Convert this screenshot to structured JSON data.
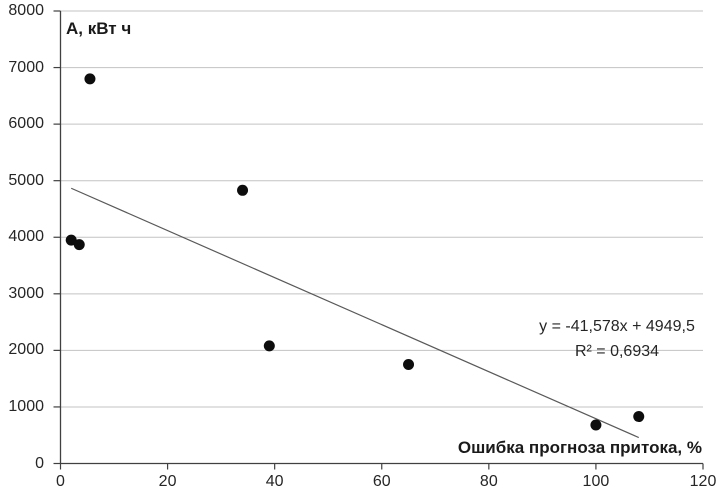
{
  "chart_data": {
    "type": "scatter",
    "y_axis_title": "А, кВт ч",
    "x_axis_title": "Ошибка прогноза притока, %",
    "points": [
      {
        "x": 2,
        "y": 3950
      },
      {
        "x": 3.5,
        "y": 3870
      },
      {
        "x": 5.5,
        "y": 6800
      },
      {
        "x": 34,
        "y": 4830
      },
      {
        "x": 39,
        "y": 2080
      },
      {
        "x": 65,
        "y": 1750
      },
      {
        "x": 100,
        "y": 680
      },
      {
        "x": 108,
        "y": 830
      }
    ],
    "trendline": {
      "slope": -41.578,
      "intercept": 4949.5,
      "x_start": 2,
      "x_end": 108,
      "equation_label": "y = -41,578x + 4949,5",
      "r2_label": "R² = 0,6934"
    },
    "x_ticks": [
      0,
      20,
      40,
      60,
      80,
      100,
      120
    ],
    "y_ticks": [
      0,
      1000,
      2000,
      3000,
      4000,
      5000,
      6000,
      7000,
      8000
    ],
    "xlim": [
      0,
      120
    ],
    "ylim": [
      0,
      8000
    ],
    "grid": "horizontal-only",
    "legend": "none",
    "colors": {
      "point": "#0d0d0d",
      "trendline": "#595959",
      "gridline": "#c3c3c3",
      "axis": "#404040",
      "text": "#262626"
    }
  }
}
